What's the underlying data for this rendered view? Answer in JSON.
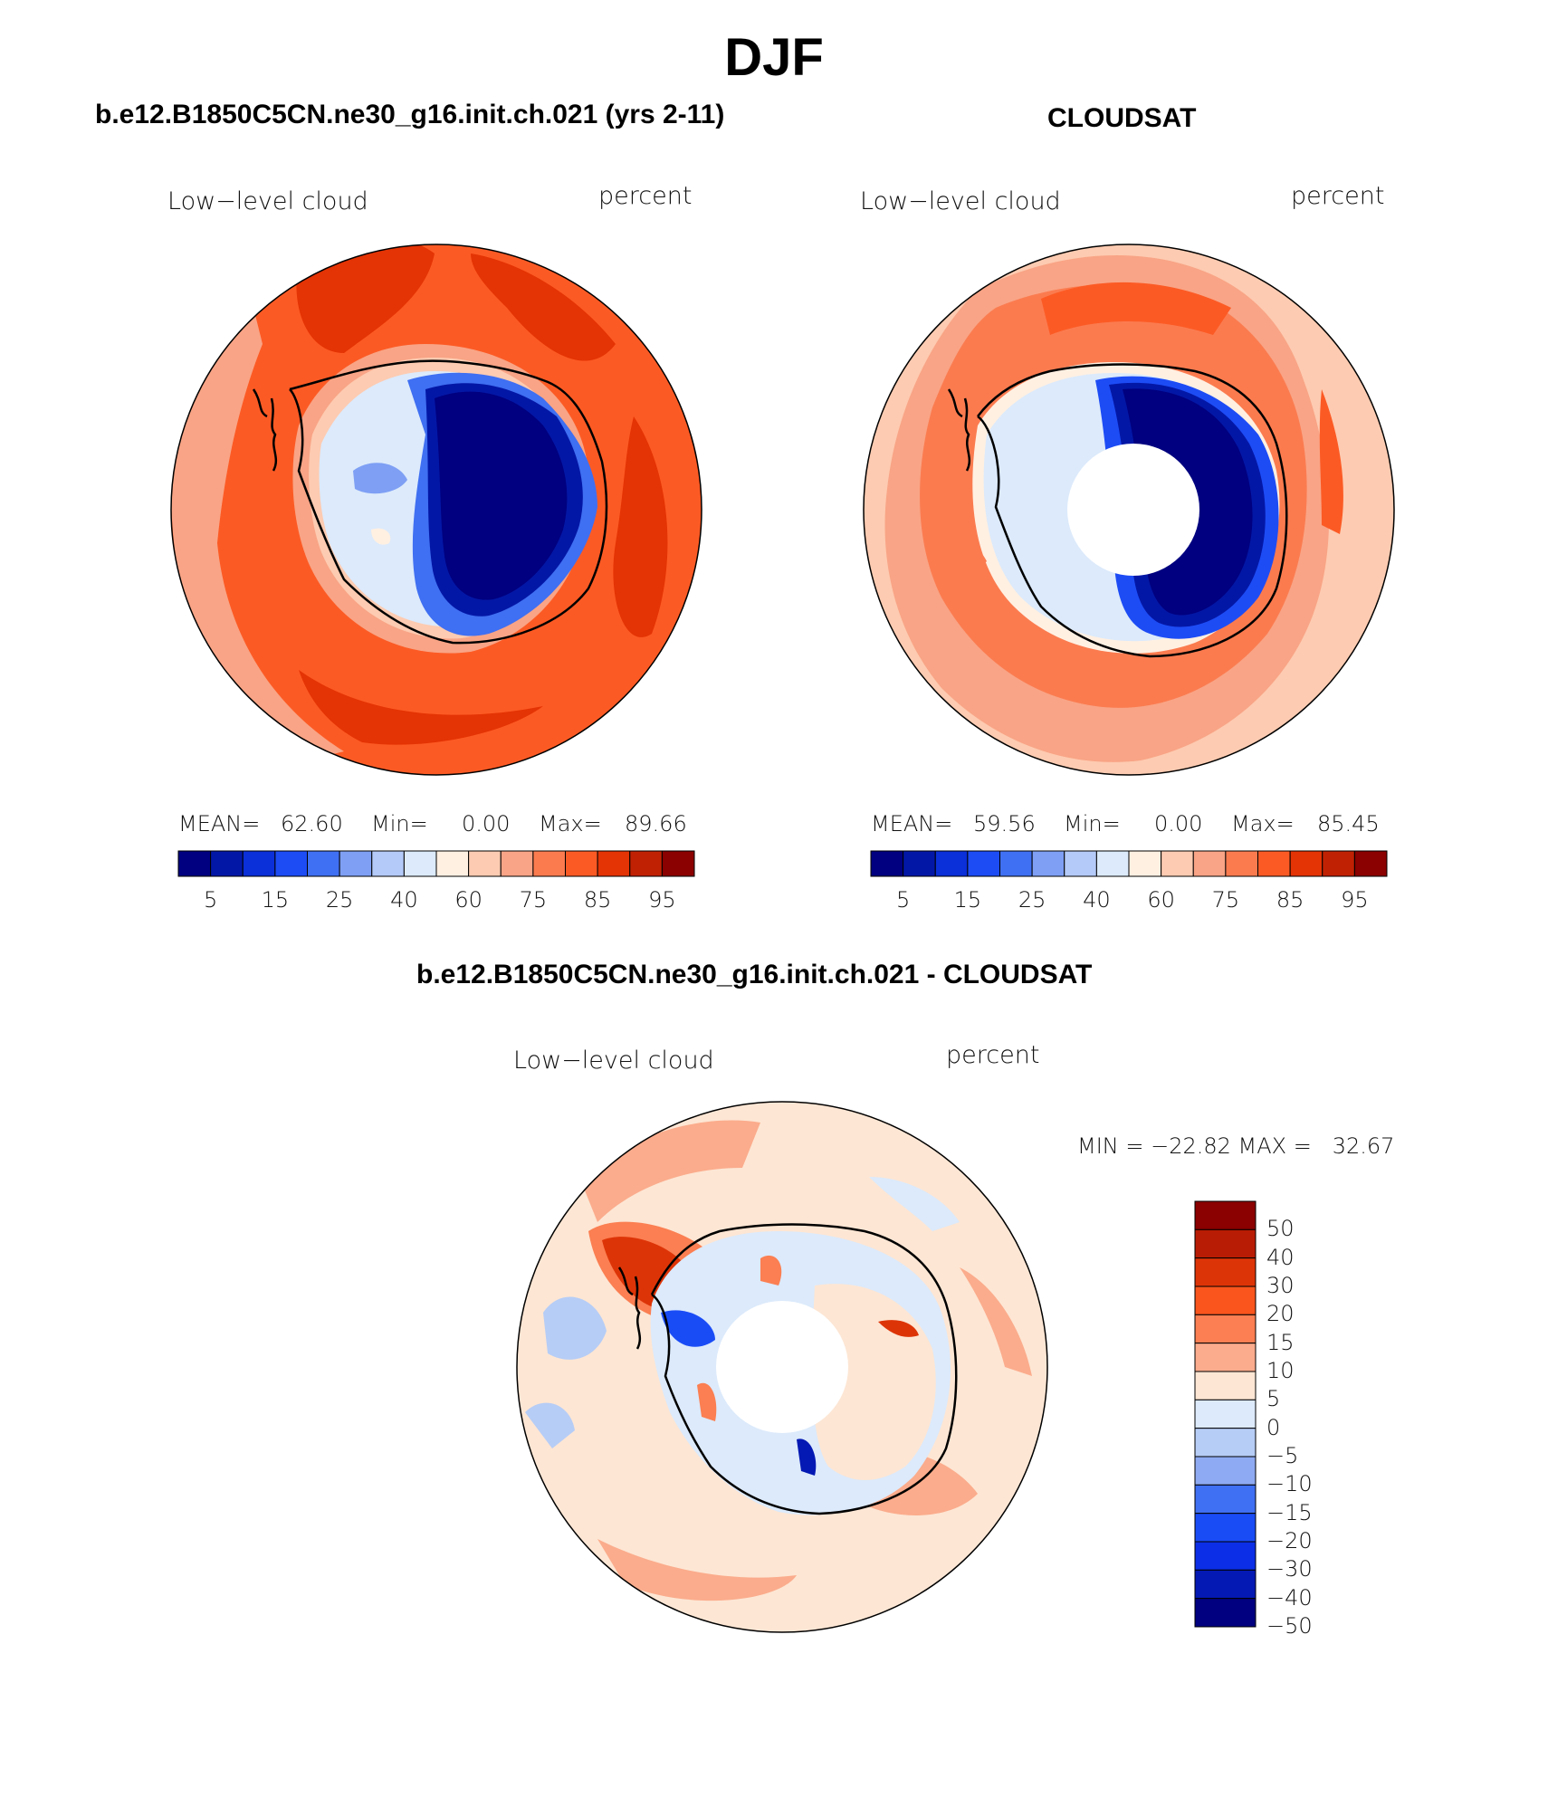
{
  "title": "DJF",
  "panels": [
    {
      "id": "model",
      "header": "b.e12.B1850C5CN.ne30_g16.init.ch.021 (yrs 2-11)",
      "left_string": "Low−level cloud",
      "right_string": "percent",
      "stats": {
        "mean_label": "MEAN=",
        "mean": "62.60",
        "min_label": "Min=",
        "min": "0.00",
        "max_label": "Max=",
        "max": "89.66"
      },
      "hole": false
    },
    {
      "id": "obs",
      "header": "CLOUDSAT",
      "left_string": "Low−level cloud",
      "right_string": "percent",
      "stats": {
        "mean_label": "MEAN=",
        "mean": "59.56",
        "min_label": "Min=",
        "min": "0.00",
        "max_label": "Max=",
        "max": "85.45"
      },
      "hole": true
    }
  ],
  "colorbar": {
    "colors": [
      "#000080",
      "#0317a6",
      "#0b2fd8",
      "#1d4cf5",
      "#3f6ff2",
      "#7e9ff4",
      "#b4caf8",
      "#dceafb",
      "#fff0e2",
      "#fdcbb1",
      "#f9a486",
      "#fb7b4f",
      "#fc5a24",
      "#e43304",
      "#c02103",
      "#8b0000"
    ],
    "tick_labels": [
      "5",
      "15",
      "25",
      "40",
      "60",
      "75",
      "85",
      "95"
    ]
  },
  "difference": {
    "header": "b.e12.B1850C5CN.ne30_g16.init.ch.021 - CLOUDSAT",
    "left_string": "Low−level cloud",
    "right_string": "percent",
    "minmax": "MIN = −22.82 MAX =   32.67",
    "colorbar": {
      "colors_top_to_bottom": [
        "#8b0000",
        "#b91c04",
        "#dd3407",
        "#f9551d",
        "#fb7f52",
        "#fbac8c",
        "#fde6d4",
        "#dceafb",
        "#b6cdf6",
        "#8eaaf2",
        "#3f6ff2",
        "#1a4cf6",
        "#0b2ee6",
        "#0419b3",
        "#000080"
      ],
      "tick_labels": [
        "50",
        "40",
        "30",
        "20",
        "15",
        "10",
        "5",
        "0",
        "−5",
        "−10",
        "−15",
        "−20",
        "−30",
        "−40",
        "−50"
      ]
    }
  }
}
